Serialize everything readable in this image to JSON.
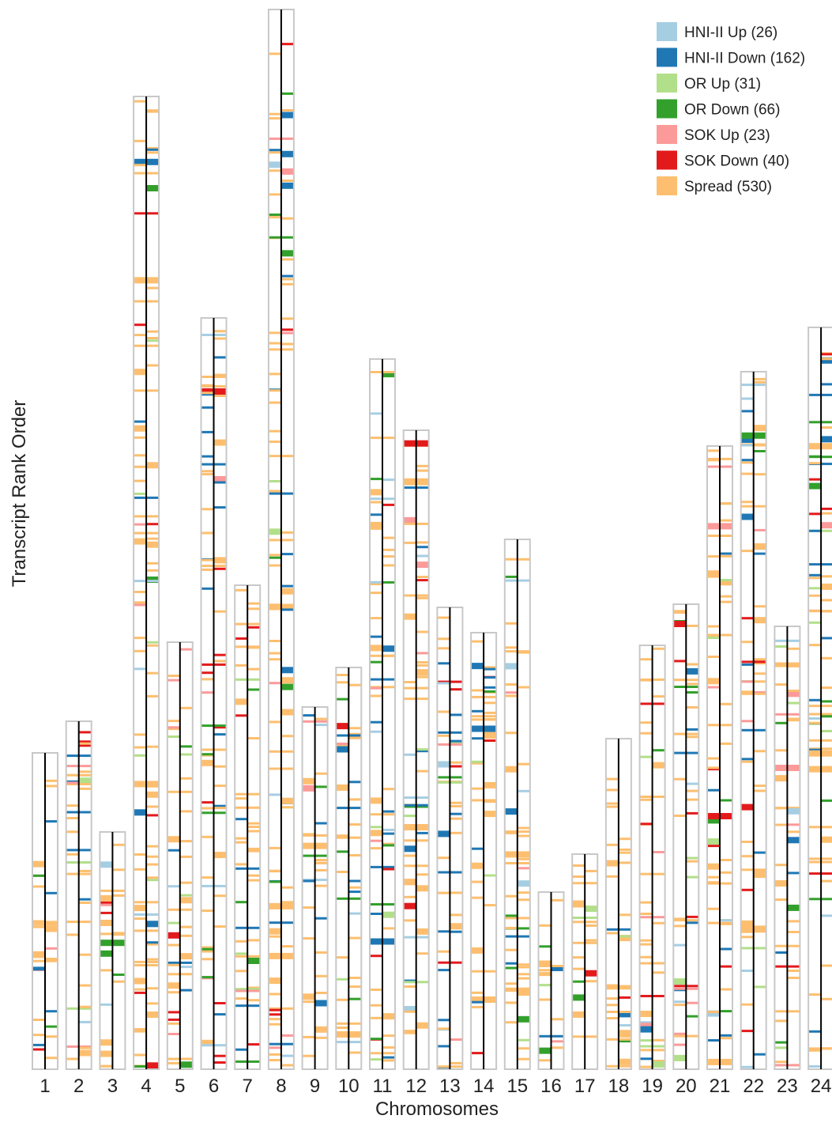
{
  "chart_data": {
    "type": "chromosome-ideogram",
    "xlabel": "Chromosomes",
    "ylabel": "Transcript Rank Order",
    "legend_position": "top-right",
    "legend": [
      {
        "key": "hni_up",
        "label": "HNI-II Up (26)",
        "color": "#a6cee3"
      },
      {
        "key": "hni_down",
        "label": "HNI-II Down (162)",
        "color": "#1f78b4"
      },
      {
        "key": "or_up",
        "label": "OR Up (31)",
        "color": "#b2df8a"
      },
      {
        "key": "or_down",
        "label": "OR Down (66)",
        "color": "#33a02c"
      },
      {
        "key": "sok_up",
        "label": "SOK Up (23)",
        "color": "#fb9a99"
      },
      {
        "key": "sok_down",
        "label": "SOK Down (40)",
        "color": "#e31a1c"
      },
      {
        "key": "spread",
        "label": "Spread (530)",
        "color": "#fdbf6f"
      }
    ],
    "chromosome_axis": {
      "frame_color": "#c8c8c8",
      "axis_color": "#000000"
    },
    "chromosomes": [
      {
        "label": "1",
        "length": 400
      },
      {
        "label": "2",
        "length": 440
      },
      {
        "label": "3",
        "length": 300
      },
      {
        "label": "4",
        "length": 1230
      },
      {
        "label": "5",
        "length": 540
      },
      {
        "label": "6",
        "length": 950
      },
      {
        "label": "7",
        "length": 612
      },
      {
        "label": "8",
        "length": 1340
      },
      {
        "label": "9",
        "length": 458
      },
      {
        "label": "10",
        "length": 508
      },
      {
        "label": "11",
        "length": 898
      },
      {
        "label": "12",
        "length": 808
      },
      {
        "label": "13",
        "length": 584
      },
      {
        "label": "14",
        "length": 552
      },
      {
        "label": "15",
        "length": 670
      },
      {
        "label": "16",
        "length": 224
      },
      {
        "label": "17",
        "length": 272
      },
      {
        "label": "18",
        "length": 418
      },
      {
        "label": "19",
        "length": 536
      },
      {
        "label": "20",
        "length": 588
      },
      {
        "label": "21",
        "length": 788
      },
      {
        "label": "22",
        "length": 882
      },
      {
        "label": "23",
        "length": 560
      },
      {
        "label": "24",
        "length": 938
      }
    ]
  }
}
